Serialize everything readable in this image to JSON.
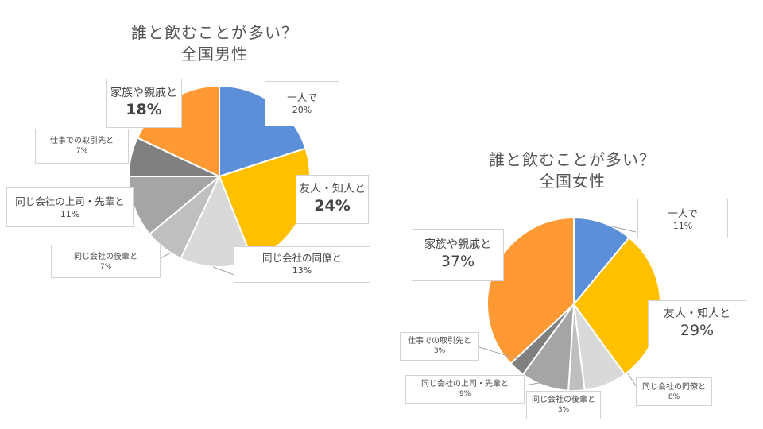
{
  "chart_data": [
    {
      "type": "pie",
      "title": "誰と飲むことが多い？",
      "subtitle": "全国男性",
      "series": [
        {
          "categories": [
            "一人で",
            "友人・知人と",
            "同じ会社の同僚と",
            "同じ会社の後輩と",
            "同じ会社の上司・先輩と",
            "仕事での取引先と",
            "家族や親戚と"
          ],
          "values": [
            20,
            24,
            13,
            7,
            11,
            7,
            18
          ],
          "labels": [
            "20%",
            "24%",
            "13%",
            "7%",
            "11%",
            "7%",
            "18%"
          ],
          "colors": [
            "#5B8FD9",
            "#FFC000",
            "#D9D9D9",
            "#BFBFBF",
            "#A5A5A5",
            "#808080",
            "#FF9933"
          ]
        }
      ]
    },
    {
      "type": "pie",
      "title": "誰と飲むことが多い？",
      "subtitle": "全国女性",
      "series": [
        {
          "categories": [
            "一人で",
            "友人・知人と",
            "同じ会社の同僚と",
            "同じ会社の後輩と",
            "同じ会社の上司・先輩と",
            "仕事での取引先と",
            "家族や親戚と"
          ],
          "values": [
            11,
            29,
            8,
            3,
            9,
            3,
            37
          ],
          "labels": [
            "11%",
            "29%",
            "8%",
            "3%",
            "9%",
            "3%",
            "37%"
          ],
          "colors": [
            "#5B8FD9",
            "#FFC000",
            "#D9D9D9",
            "#BFBFBF",
            "#A5A5A5",
            "#808080",
            "#FF9933"
          ]
        }
      ]
    }
  ]
}
